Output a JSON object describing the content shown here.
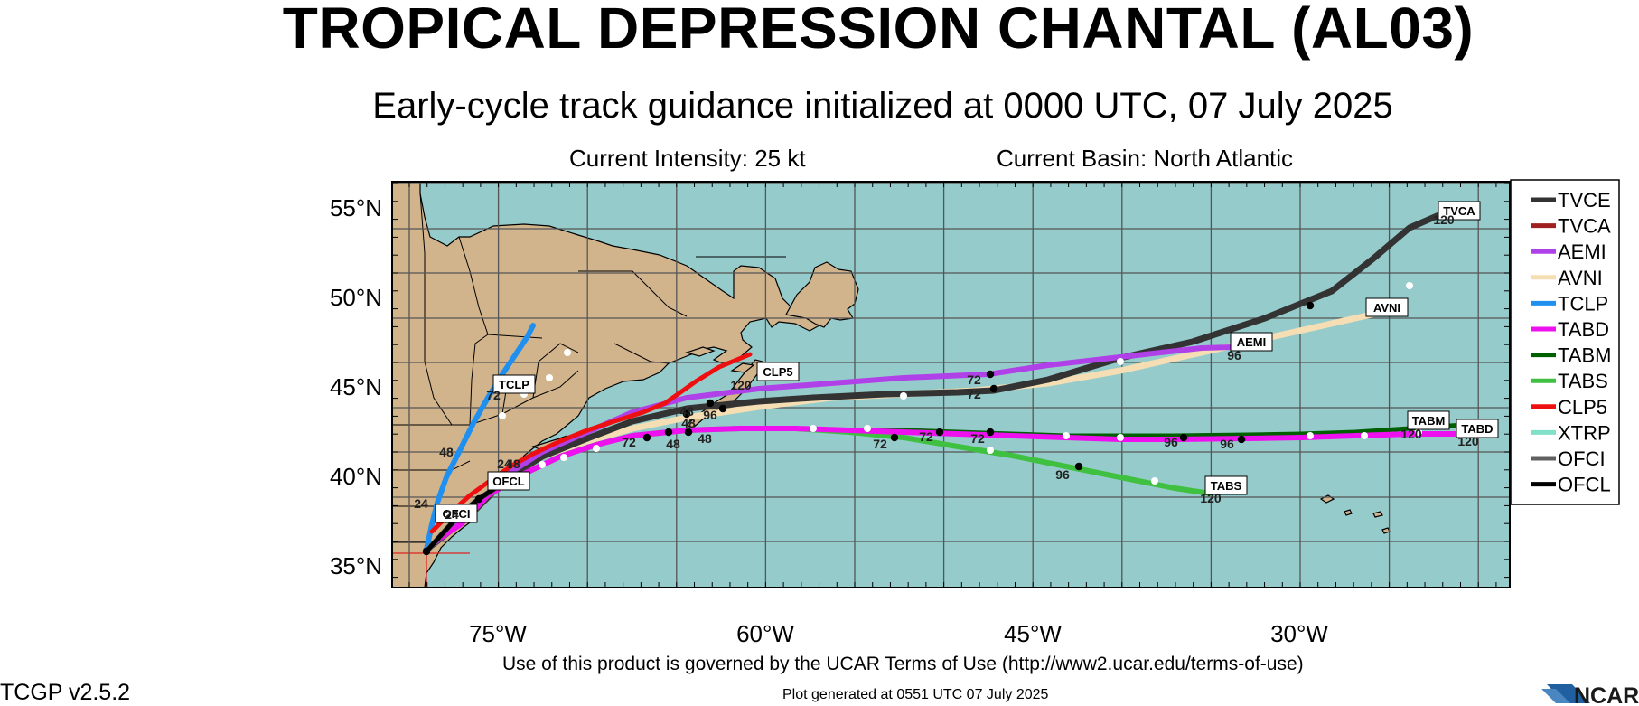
{
  "title": "TROPICAL DEPRESSION CHANTAL (AL03)",
  "subtitle": "Early-cycle track guidance initialized at 0000 UTC, 07 July 2025",
  "current_intensity": "Current Intensity: 25 kt",
  "current_basin": "Current Basin: North Atlantic",
  "footer": {
    "terms": "Use of this product is governed by the UCAR Terms of Use (http://www2.ucar.edu/terms-of-use)",
    "generated": "Plot generated at 0551 UTC   07 July 2025",
    "version": "TCGP v2.5.2",
    "logo": "NCAR"
  },
  "axes": {
    "lat_labels": [
      "55°N",
      "50°N",
      "45°N",
      "40°N",
      "35°N"
    ],
    "lon_labels": [
      "75°W",
      "60°W",
      "45°W",
      "30°W"
    ]
  },
  "colors": {
    "ocean": "#96cbcb",
    "land": "#d2b48c",
    "grid": "#555555"
  },
  "legend": [
    {
      "name": "TVCE",
      "color": "#333333"
    },
    {
      "name": "TVCA",
      "color": "#a02020"
    },
    {
      "name": "AEMI",
      "color": "#b040e8"
    },
    {
      "name": "AVNI",
      "color": "#f5deb3"
    },
    {
      "name": "TCLP",
      "color": "#2090f0"
    },
    {
      "name": "TABD",
      "color": "#ee10ee"
    },
    {
      "name": "TABM",
      "color": "#006000"
    },
    {
      "name": "TABS",
      "color": "#40c040"
    },
    {
      "name": "CLP5",
      "color": "#ee1010"
    },
    {
      "name": "XTRP",
      "color": "#80e0c8"
    },
    {
      "name": "OFCI",
      "color": "#606060"
    },
    {
      "name": "OFCL",
      "color": "#000000"
    }
  ],
  "track_labels": {
    "TVCA": "TVCA",
    "AVNI": "AVNI",
    "AEMI": "AEMI",
    "TCLP": "TCLP",
    "CLP5": "CLP5",
    "OFCL": "OFCL",
    "OFCI": "OFCI",
    "TABM": "TABM",
    "TABD": "TABD",
    "TABS": "TABS"
  },
  "hour_labels": [
    "120",
    "72",
    "48",
    "24",
    "96"
  ]
}
